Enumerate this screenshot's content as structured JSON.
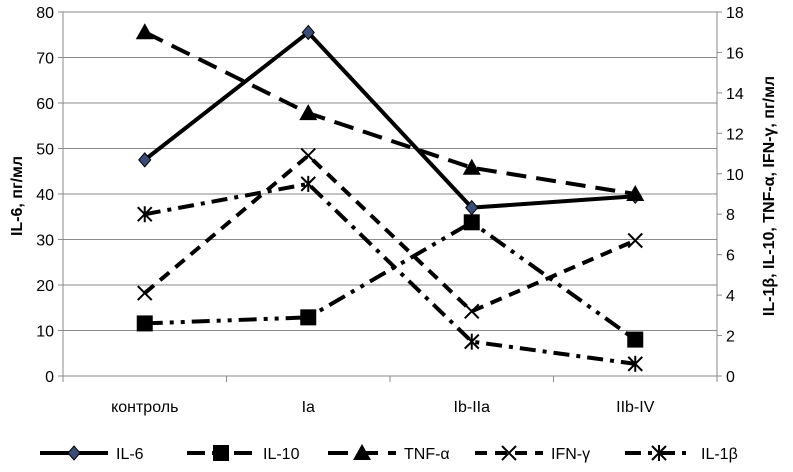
{
  "chart_data": {
    "type": "line",
    "categories": [
      "контроль",
      "Ia",
      "Ib-IIa",
      "IIb-IV"
    ],
    "ylabel_left": "IL-6, пг/мл",
    "ylabel_right": "IL-1β, IL-10, TNF-α, IFN-γ, пг/мл",
    "ylim_left": [
      0,
      80
    ],
    "ylim_right": [
      0,
      18
    ],
    "yticks_left": [
      0,
      10,
      20,
      30,
      40,
      50,
      60,
      70,
      80
    ],
    "yticks_right": [
      0,
      2,
      4,
      6,
      8,
      10,
      12,
      14,
      16,
      18
    ],
    "grid": true,
    "legend_position": "bottom",
    "series": [
      {
        "name": "IL-6",
        "axis": "left",
        "values": [
          47.5,
          75.5,
          37,
          39.5
        ],
        "marker": "diamond",
        "dash": "solid",
        "color": "#000000"
      },
      {
        "name": "IL-10",
        "axis": "right",
        "values": [
          2.6,
          2.9,
          7.6,
          1.8
        ],
        "marker": "square",
        "dash": "dashdotdot",
        "color": "#000000"
      },
      {
        "name": "TNF-α",
        "axis": "right",
        "values": [
          17,
          13,
          10.3,
          9
        ],
        "marker": "triangle",
        "dash": "longdash",
        "color": "#000000"
      },
      {
        "name": "IFN-γ",
        "axis": "right",
        "values": [
          4.1,
          10.9,
          3.2,
          6.7
        ],
        "marker": "x-star",
        "dash": "dash",
        "color": "#000000"
      },
      {
        "name": "IL-1β",
        "axis": "right",
        "values": [
          8,
          9.5,
          1.7,
          0.6
        ],
        "marker": "asterisk",
        "dash": "dashdot",
        "color": "#000000"
      }
    ]
  }
}
